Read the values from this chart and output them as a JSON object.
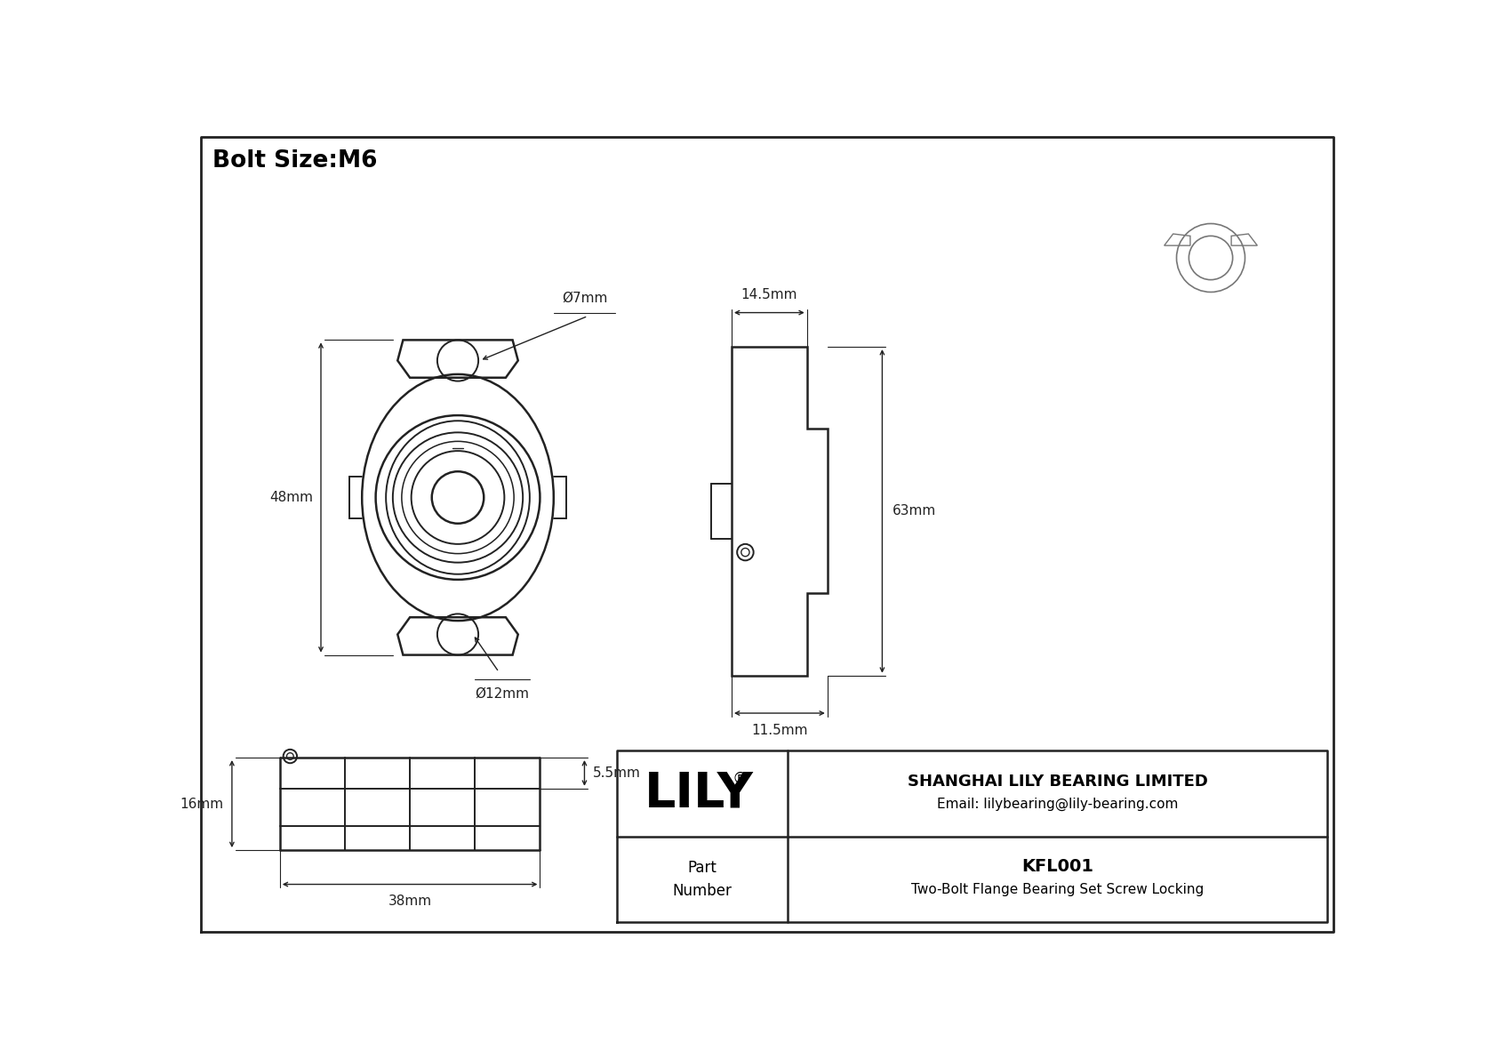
{
  "title": "Bolt Size:M6",
  "line_color": "#222222",
  "company": "SHANGHAI LILY BEARING LIMITED",
  "email": "Email: lilybearing@lily-bearing.com",
  "part_number_label": "Part\nNumber",
  "part_number": "KFL001",
  "part_desc": "Two-Bolt Flange Bearing Set Screw Locking",
  "dim_bolt_hole": "Ø7mm",
  "dim_bolt_circle": "Ø12mm",
  "dim_height": "48mm",
  "dim_top_width": "14.5mm",
  "dim_side_height": "63mm",
  "dim_bottom_width": "11.5mm",
  "dim_depth": "5.5mm",
  "dim_total_width": "38mm",
  "dim_front_height": "16mm"
}
